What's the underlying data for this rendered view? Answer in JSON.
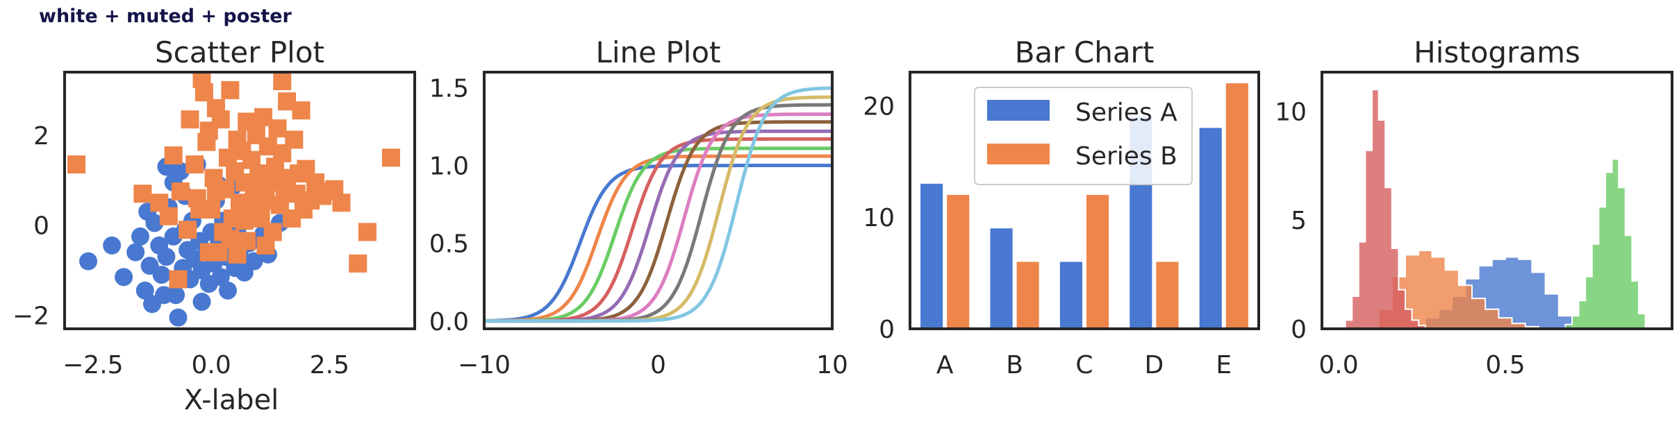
{
  "figure_title": "white + muted + poster",
  "colors": {
    "blue": "#4878d0",
    "orange": "#ee854a",
    "green": "#6acc64",
    "red": "#d65f5f",
    "purple": "#956cb4",
    "brown": "#8c613c",
    "pink": "#dc7ec0",
    "gray": "#797979",
    "olive": "#d5bb67",
    "cyan": "#82c6e2",
    "axis": "#262626"
  },
  "chart_data": [
    {
      "type": "scatter",
      "title": "Scatter Plot",
      "xlabel": "X-label",
      "ylabel": "",
      "xlim": [
        -3.1,
        4.3
      ],
      "ylim": [
        -2.3,
        3.4
      ],
      "xticks": [
        "−2.5",
        "0.0",
        "2.5"
      ],
      "xtick_values": [
        -2.5,
        0,
        2.5
      ],
      "yticks": [
        "−2",
        "0",
        "2"
      ],
      "ytick_values": [
        -2,
        0,
        2
      ],
      "series": [
        {
          "color": "blue",
          "marker": "circle",
          "points": [
            [
              -2.6,
              -0.8
            ],
            [
              -2.1,
              -0.45
            ],
            [
              -1.85,
              -1.15
            ],
            [
              -1.6,
              -0.6
            ],
            [
              -1.5,
              -0.25
            ],
            [
              -1.4,
              -1.45
            ],
            [
              -1.3,
              -0.9
            ],
            [
              -1.25,
              -1.75
            ],
            [
              -1.2,
              0.05
            ],
            [
              -1.1,
              -0.45
            ],
            [
              -1.05,
              -1.1
            ],
            [
              -0.95,
              -0.7
            ],
            [
              -0.9,
              0.4
            ],
            [
              -0.8,
              -0.25
            ],
            [
              -0.75,
              -1.55
            ],
            [
              -0.7,
              -2.05
            ],
            [
              -0.6,
              -0.95
            ],
            [
              -0.55,
              0.65
            ],
            [
              -0.5,
              -0.55
            ],
            [
              -0.45,
              -1.2
            ],
            [
              -0.4,
              0.1
            ],
            [
              -0.35,
              -0.75
            ],
            [
              -0.3,
              1.35
            ],
            [
              -0.25,
              -0.35
            ],
            [
              -0.2,
              -1.0
            ],
            [
              -0.15,
              0.35
            ],
            [
              -0.1,
              -0.6
            ],
            [
              -0.05,
              -1.3
            ],
            [
              0.0,
              -0.15
            ],
            [
              0.05,
              -0.85
            ],
            [
              0.1,
              0.55
            ],
            [
              0.15,
              -0.45
            ],
            [
              0.2,
              -1.15
            ],
            [
              0.25,
              0.1
            ],
            [
              0.3,
              -0.7
            ],
            [
              0.35,
              -1.45
            ],
            [
              0.4,
              -0.3
            ],
            [
              0.45,
              0.85
            ],
            [
              0.5,
              -0.95
            ],
            [
              0.55,
              -0.1
            ],
            [
              0.6,
              -0.6
            ],
            [
              0.7,
              -1.05
            ],
            [
              0.75,
              0.3
            ],
            [
              0.8,
              -0.4
            ],
            [
              0.9,
              -0.8
            ],
            [
              1.0,
              0.6
            ],
            [
              1.1,
              -0.2
            ],
            [
              1.2,
              -0.65
            ],
            [
              -0.95,
              1.3
            ],
            [
              -0.8,
              0.95
            ],
            [
              -0.65,
              1.2
            ],
            [
              0.95,
              1.0
            ],
            [
              -1.35,
              0.3
            ],
            [
              -0.2,
              -1.7
            ],
            [
              1.45,
              0.05
            ],
            [
              -0.55,
              -0.1
            ],
            [
              0.15,
              0.9
            ],
            [
              -1.0,
              -1.55
            ]
          ]
        },
        {
          "color": "orange",
          "marker": "square",
          "points": [
            [
              -2.85,
              1.35
            ],
            [
              -1.45,
              0.7
            ],
            [
              -1.1,
              0.5
            ],
            [
              -0.9,
              0.2
            ],
            [
              -0.8,
              1.55
            ],
            [
              -0.7,
              -1.2
            ],
            [
              -0.65,
              0.75
            ],
            [
              -0.5,
              -0.1
            ],
            [
              -0.45,
              2.35
            ],
            [
              -0.35,
              1.35
            ],
            [
              -0.3,
              0.6
            ],
            [
              -0.2,
              3.25
            ],
            [
              -0.15,
              2.95
            ],
            [
              -0.1,
              1.85
            ],
            [
              -0.05,
              2.1
            ],
            [
              0.0,
              0.35
            ],
            [
              0.05,
              1.05
            ],
            [
              0.1,
              0.75
            ],
            [
              0.1,
              2.6
            ],
            [
              0.15,
              -0.6
            ],
            [
              0.2,
              2.35
            ],
            [
              0.25,
              -0.15
            ],
            [
              0.3,
              0.8
            ],
            [
              0.35,
              1.5
            ],
            [
              0.4,
              3.0
            ],
            [
              0.45,
              0.15
            ],
            [
              0.5,
              1.2
            ],
            [
              0.55,
              -0.65
            ],
            [
              0.55,
              1.9
            ],
            [
              0.6,
              0.5
            ],
            [
              0.65,
              1.65
            ],
            [
              0.7,
              0.95
            ],
            [
              0.75,
              2.3
            ],
            [
              0.75,
              -0.35
            ],
            [
              0.8,
              0.35
            ],
            [
              0.85,
              1.45
            ],
            [
              0.9,
              0.75
            ],
            [
              0.95,
              2.0
            ],
            [
              1.0,
              1.15
            ],
            [
              1.05,
              0.15
            ],
            [
              1.1,
              2.4
            ],
            [
              1.15,
              0.55
            ],
            [
              1.2,
              1.75
            ],
            [
              1.25,
              0.95
            ],
            [
              1.3,
              -0.15
            ],
            [
              1.35,
              1.3
            ],
            [
              1.4,
              2.15
            ],
            [
              1.45,
              0.45
            ],
            [
              1.5,
              1.6
            ],
            [
              1.5,
              3.2
            ],
            [
              1.55,
              0.85
            ],
            [
              1.6,
              1.05
            ],
            [
              1.7,
              0.15
            ],
            [
              1.75,
              1.9
            ],
            [
              1.8,
              0.7
            ],
            [
              1.85,
              1.15
            ],
            [
              1.9,
              2.55
            ],
            [
              1.95,
              0.35
            ],
            [
              2.0,
              1.25
            ],
            [
              2.1,
              0.55
            ],
            [
              2.2,
              0.95
            ],
            [
              2.35,
              0.65
            ],
            [
              2.5,
              0.75
            ],
            [
              2.6,
              0.8
            ],
            [
              2.75,
              0.5
            ],
            [
              3.1,
              -0.85
            ],
            [
              3.3,
              -0.15
            ],
            [
              3.8,
              1.5
            ],
            [
              -0.05,
              -0.6
            ],
            [
              0.4,
              -0.3
            ],
            [
              1.15,
              -0.45
            ],
            [
              0.7,
              0.1
            ],
            [
              -0.25,
              0.35
            ],
            [
              1.6,
              2.75
            ]
          ]
        }
      ]
    },
    {
      "type": "line",
      "title": "Line Plot",
      "xlim": [
        -10,
        10
      ],
      "ylim": [
        -0.05,
        1.6
      ],
      "xticks": [
        "−10",
        "0",
        "10"
      ],
      "xtick_values": [
        -10,
        0,
        10
      ],
      "yticks": [
        "0.0",
        "0.5",
        "1.0",
        "1.5"
      ],
      "ytick_values": [
        0,
        0.5,
        1.0,
        1.5
      ],
      "curve": "sigmoid",
      "series": [
        {
          "color": "blue",
          "center": -4.5,
          "height": 1.0
        },
        {
          "color": "orange",
          "center": -3.5,
          "height": 1.06
        },
        {
          "color": "green",
          "center": -2.5,
          "height": 1.11
        },
        {
          "color": "red",
          "center": -1.5,
          "height": 1.17
        },
        {
          "color": "purple",
          "center": -0.5,
          "height": 1.22
        },
        {
          "color": "brown",
          "center": 0.5,
          "height": 1.28
        },
        {
          "color": "pink",
          "center": 1.5,
          "height": 1.33
        },
        {
          "color": "gray",
          "center": 2.5,
          "height": 1.39
        },
        {
          "color": "olive",
          "center": 3.5,
          "height": 1.44
        },
        {
          "color": "cyan",
          "center": 4.5,
          "height": 1.5
        }
      ]
    },
    {
      "type": "bar",
      "title": "Bar Chart",
      "categories": [
        "A",
        "B",
        "C",
        "D",
        "E"
      ],
      "ylim": [
        0,
        23
      ],
      "yticks": [
        "0",
        "10",
        "20"
      ],
      "ytick_values": [
        0,
        10,
        20
      ],
      "legend": "upper center",
      "series": [
        {
          "name": "Series A",
          "color": "blue",
          "values": [
            13,
            9,
            6,
            19,
            18
          ]
        },
        {
          "name": "Series B",
          "color": "orange",
          "values": [
            12,
            6,
            12,
            6,
            22
          ]
        }
      ]
    },
    {
      "type": "histogram",
      "title": "Histograms",
      "xlim": [
        -0.05,
        1.0
      ],
      "ylim": [
        0,
        11.8
      ],
      "xticks": [
        "0.0",
        "0.5"
      ],
      "xtick_values": [
        0,
        0.5
      ],
      "yticks": [
        "0",
        "5",
        "10"
      ],
      "ytick_values": [
        0,
        5,
        10
      ],
      "series": [
        {
          "color": "blue",
          "x": [
            0.18,
            0.22,
            0.26,
            0.3,
            0.34,
            0.38,
            0.42,
            0.46,
            0.5,
            0.54,
            0.58,
            0.62,
            0.66,
            0.7
          ],
          "y": [
            0,
            0.2,
            0.5,
            0.9,
            1.5,
            2.3,
            2.9,
            3.2,
            3.3,
            3.2,
            2.6,
            1.6,
            0.6,
            0
          ]
        },
        {
          "color": "orange",
          "x": [
            0.08,
            0.12,
            0.16,
            0.2,
            0.24,
            0.28,
            0.32,
            0.36,
            0.4,
            0.44,
            0.48,
            0.52,
            0.56,
            0.6
          ],
          "y": [
            0,
            0.9,
            2.4,
            3.4,
            3.6,
            3.3,
            2.7,
            2.0,
            1.4,
            0.9,
            0.5,
            0.25,
            0.1,
            0
          ]
        },
        {
          "color": "green",
          "x": [
            0.66,
            0.68,
            0.7,
            0.72,
            0.74,
            0.76,
            0.78,
            0.8,
            0.82,
            0.84,
            0.86,
            0.88,
            0.9,
            0.92
          ],
          "y": [
            0,
            0.2,
            0.6,
            1.3,
            2.4,
            3.9,
            5.6,
            7.2,
            7.8,
            6.5,
            4.3,
            2.2,
            0.7,
            0
          ]
        },
        {
          "color": "red",
          "x": [
            0.0,
            0.02,
            0.04,
            0.06,
            0.08,
            0.1,
            0.12,
            0.14,
            0.16,
            0.18,
            0.2,
            0.22,
            0.24,
            0.26
          ],
          "y": [
            0,
            0.4,
            1.5,
            4.0,
            8.2,
            11.0,
            9.6,
            6.5,
            3.7,
            1.8,
            0.9,
            0.4,
            0.15,
            0
          ]
        }
      ]
    }
  ]
}
